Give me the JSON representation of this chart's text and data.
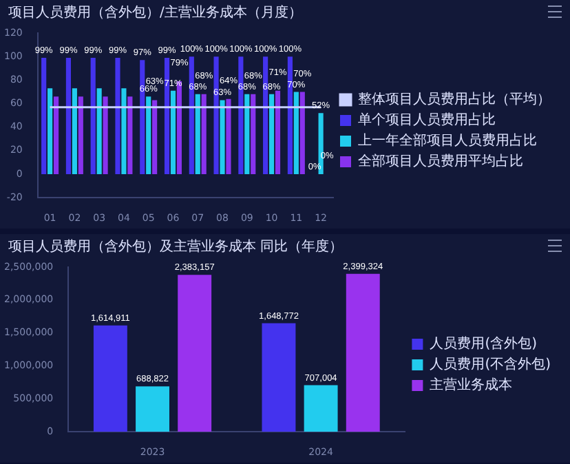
{
  "chart_data": [
    {
      "type": "bar",
      "title": "项目人员费用（含外包）/主营业务成本（月度）",
      "categories": [
        "01",
        "02",
        "03",
        "04",
        "05",
        "06",
        "07",
        "08",
        "09",
        "10",
        "11",
        "12"
      ],
      "ylim": [
        -20,
        120
      ],
      "yticks": [
        -20,
        0,
        20,
        40,
        60,
        80,
        100,
        120
      ],
      "grid": false,
      "legend": "right",
      "series": [
        {
          "name": "单个项目人员费用占比",
          "color": "#4433ee",
          "values": [
            99,
            99,
            99,
            99,
            97,
            99,
            100,
            100,
            100,
            100,
            100,
            0
          ],
          "value_labels": [
            "99%",
            "99%",
            "99%",
            "99%",
            "97%",
            "99%",
            "100%",
            "100%",
            "100%",
            "100%",
            "100%",
            "0%"
          ]
        },
        {
          "name": "上一年全部项目人员费用占比",
          "color": "#22ccee",
          "values": [
            73,
            73,
            73,
            73,
            66,
            71,
            68,
            63,
            68,
            68,
            70,
            52
          ],
          "value_labels": [
            null,
            null,
            null,
            null,
            "66%",
            "71%",
            "68%",
            "63%",
            "68%",
            "68%",
            "70%",
            "52%"
          ]
        },
        {
          "name": "全部项目人员费用平均占比",
          "color": "#8833ee",
          "values": [
            66,
            66,
            66,
            66,
            63,
            79,
            68,
            64,
            68,
            71,
            70,
            0
          ],
          "value_labels": [
            null,
            null,
            null,
            null,
            "63%",
            "79%",
            "68%",
            "64%",
            "68%",
            "71%",
            "70%",
            "0%"
          ]
        },
        {
          "name": "整体项目人员费用占比（平均）",
          "type": "line",
          "color": "#c8d0ff",
          "marker": "none",
          "values": [
            57,
            57,
            57,
            57,
            57,
            57,
            57,
            57,
            57,
            57,
            57,
            57
          ]
        }
      ]
    },
    {
      "type": "bar",
      "title": "项目人员费用（含外包）及主营业务成本 同比（年度）",
      "categories": [
        "2023",
        "2024"
      ],
      "ylim": [
        0,
        2500000
      ],
      "yticks": [
        0,
        {
          "value": 500000,
          "label": "500,000"
        },
        {
          "value": 1000000,
          "label": "1,000,000"
        },
        {
          "value": 1500000,
          "label": "1,500,000"
        },
        {
          "value": 2000000,
          "label": "2,000,000"
        },
        {
          "value": 2500000,
          "label": "2,500,000"
        }
      ],
      "grid": false,
      "legend": "right",
      "series": [
        {
          "name": "人员费用(含外包)",
          "color": "#4433ee",
          "values": [
            1614911,
            1648772
          ],
          "value_labels": [
            "1,614,911",
            "1,648,772"
          ]
        },
        {
          "name": "人员费用(不含外包)",
          "color": "#22ccee",
          "values": [
            688822,
            707004
          ],
          "value_labels": [
            "688,822",
            "707,004"
          ]
        },
        {
          "name": "主营业务成本",
          "color": "#9933ee",
          "values": [
            2383157,
            2399324
          ],
          "value_labels": [
            "2,383,157",
            "2,399,324"
          ]
        }
      ]
    }
  ]
}
